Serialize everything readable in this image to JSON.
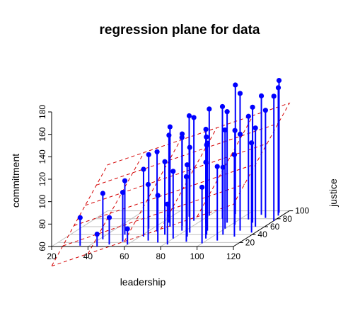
{
  "chart_data": {
    "type": "scatter",
    "subtype": "3d-scatter-with-regression-plane",
    "title": "regression plane for data",
    "xlabel": "leadership",
    "ylabel": "justice",
    "zlabel": "commitment",
    "xlim": [
      20,
      120
    ],
    "ylim": [
      10,
      100
    ],
    "zlim": [
      60,
      180
    ],
    "x_ticks": [
      "20",
      "40",
      "60",
      "80",
      "100",
      "120"
    ],
    "y_ticks": [
      "20",
      "40",
      "60",
      "80",
      "100"
    ],
    "z_ticks": [
      "60",
      "80",
      "100",
      "120",
      "140",
      "160",
      "180"
    ],
    "grid": true,
    "regression_plane": {
      "intercept": 25,
      "slope_x": 0.55,
      "slope_y": 0.65
    },
    "colors": {
      "points": "#0000ff",
      "plane": "#d40000",
      "grid": "#c0c0c0",
      "box": "#000000"
    },
    "points": [
      {
        "x": 35,
        "y": 12,
        "z": 85
      },
      {
        "x": 42,
        "y": 28,
        "z": 101
      },
      {
        "x": 45,
        "y": 10,
        "z": 71
      },
      {
        "x": 50,
        "y": 15,
        "z": 84
      },
      {
        "x": 50,
        "y": 40,
        "z": 108
      },
      {
        "x": 55,
        "y": 22,
        "z": 104
      },
      {
        "x": 58,
        "y": 55,
        "z": 126
      },
      {
        "x": 60,
        "y": 15,
        "z": 74
      },
      {
        "x": 62,
        "y": 35,
        "z": 120
      },
      {
        "x": 64,
        "y": 70,
        "z": 138
      },
      {
        "x": 65,
        "y": 48,
        "z": 131
      },
      {
        "x": 68,
        "y": 25,
        "z": 110
      },
      {
        "x": 68,
        "y": 60,
        "z": 149
      },
      {
        "x": 70,
        "y": 85,
        "z": 150
      },
      {
        "x": 72,
        "y": 40,
        "z": 125
      },
      {
        "x": 74,
        "y": 62,
        "z": 142
      },
      {
        "x": 75,
        "y": 20,
        "z": 102
      },
      {
        "x": 76,
        "y": 75,
        "z": 152
      },
      {
        "x": 78,
        "y": 50,
        "z": 143
      },
      {
        "x": 80,
        "y": 30,
        "z": 120
      },
      {
        "x": 80,
        "y": 88,
        "z": 155
      },
      {
        "x": 82,
        "y": 15,
        "z": 96
      },
      {
        "x": 84,
        "y": 45,
        "z": 136
      },
      {
        "x": 85,
        "y": 68,
        "z": 144
      },
      {
        "x": 86,
        "y": 35,
        "z": 124
      },
      {
        "x": 88,
        "y": 60,
        "z": 140
      },
      {
        "x": 90,
        "y": 80,
        "z": 160
      },
      {
        "x": 90,
        "y": 22,
        "z": 118
      },
      {
        "x": 92,
        "y": 50,
        "z": 138
      },
      {
        "x": 93,
        "y": 92,
        "z": 175
      },
      {
        "x": 95,
        "y": 40,
        "z": 140
      },
      {
        "x": 96,
        "y": 70,
        "z": 159
      },
      {
        "x": 98,
        "y": 30,
        "z": 128
      },
      {
        "x": 98,
        "y": 85,
        "z": 170
      },
      {
        "x": 100,
        "y": 55,
        "z": 148
      },
      {
        "x": 100,
        "y": 18,
        "z": 110
      },
      {
        "x": 102,
        "y": 65,
        "z": 144
      },
      {
        "x": 104,
        "y": 40,
        "z": 120
      },
      {
        "x": 105,
        "y": 78,
        "z": 152
      },
      {
        "x": 106,
        "y": 25,
        "z": 126
      },
      {
        "x": 108,
        "y": 90,
        "z": 166
      },
      {
        "x": 110,
        "y": 50,
        "z": 146
      },
      {
        "x": 110,
        "y": 70,
        "z": 163
      },
      {
        "x": 112,
        "y": 35,
        "z": 133
      },
      {
        "x": 113,
        "y": 82,
        "z": 156
      },
      {
        "x": 115,
        "y": 60,
        "z": 148
      },
      {
        "x": 116,
        "y": 95,
        "z": 178
      },
      {
        "x": 118,
        "y": 45,
        "z": 140
      },
      {
        "x": 118,
        "y": 88,
        "z": 174
      },
      {
        "x": 120,
        "y": 75,
        "z": 171
      }
    ]
  }
}
